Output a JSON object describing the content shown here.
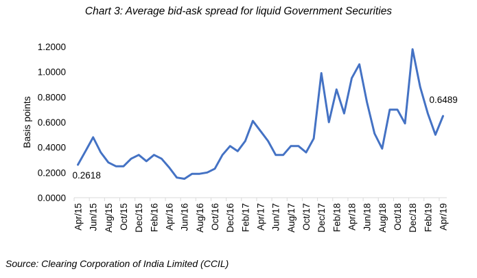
{
  "chart_data": {
    "type": "line",
    "title": "Chart 3: Average bid-ask spread for liquid Government Securities",
    "source": "Source: Clearing Corporation of India Limited (CCIL)",
    "xlabel": "",
    "ylabel": "Basis points",
    "ylim": [
      0,
      1.2
    ],
    "y_ticks": [
      "0.0000",
      "0.2000",
      "0.4000",
      "0.6000",
      "0.8000",
      "1.0000",
      "1.2000"
    ],
    "grid": false,
    "legend": "none",
    "series_color": "#4472C4",
    "x": [
      "Apr/15",
      "May/15",
      "Jun/15",
      "Jul/15",
      "Aug/15",
      "Sep/15",
      "Oct/15",
      "Nov/15",
      "Dec/15",
      "Jan/16",
      "Feb/16",
      "Mar/16",
      "Apr/16",
      "May/16",
      "Jun/16",
      "Jul/16",
      "Aug/16",
      "Sep/16",
      "Oct/16",
      "Nov/16",
      "Dec/16",
      "Jan/17",
      "Feb/17",
      "Mar/17",
      "Apr/17",
      "May/17",
      "Jun/17",
      "Jul/17",
      "Aug/17",
      "Sep/17",
      "Oct/17",
      "Nov/17",
      "Dec/17",
      "Jan/18",
      "Feb/18",
      "Mar/18",
      "Apr/18",
      "May/18",
      "Jun/18",
      "Jul/18",
      "Aug/18",
      "Sep/18",
      "Oct/18",
      "Nov/18",
      "Dec/18",
      "Jan/19",
      "Feb/19",
      "Mar/19",
      "Apr/19"
    ],
    "x_tick_labels": [
      "Apr/15",
      "Jun/15",
      "Aug/15",
      "Oct/15",
      "Dec/15",
      "Feb/16",
      "Apr/16",
      "Jun/16",
      "Aug/16",
      "Oct/16",
      "Dec/16",
      "Feb/17",
      "Apr/17",
      "Jun/17",
      "Aug/17",
      "Oct/17",
      "Dec/17",
      "Feb/18",
      "Apr/18",
      "Jun/18",
      "Aug/18",
      "Oct/18",
      "Dec/18",
      "Feb/19",
      "Apr/19"
    ],
    "series": [
      {
        "name": "Average bid-ask spread",
        "values": [
          0.2618,
          0.37,
          0.48,
          0.36,
          0.28,
          0.25,
          0.25,
          0.31,
          0.34,
          0.29,
          0.34,
          0.31,
          0.24,
          0.16,
          0.15,
          0.19,
          0.19,
          0.2,
          0.23,
          0.34,
          0.41,
          0.37,
          0.45,
          0.61,
          0.53,
          0.45,
          0.34,
          0.34,
          0.41,
          0.41,
          0.36,
          0.47,
          0.99,
          0.6,
          0.86,
          0.67,
          0.95,
          1.06,
          0.76,
          0.51,
          0.39,
          0.7,
          0.7,
          0.59,
          1.18,
          0.88,
          0.67,
          0.5,
          0.6489
        ]
      }
    ],
    "annotations": [
      {
        "x": "Apr/15",
        "text": "0.2618"
      },
      {
        "x": "Apr/19",
        "text": "0.6489"
      }
    ]
  }
}
